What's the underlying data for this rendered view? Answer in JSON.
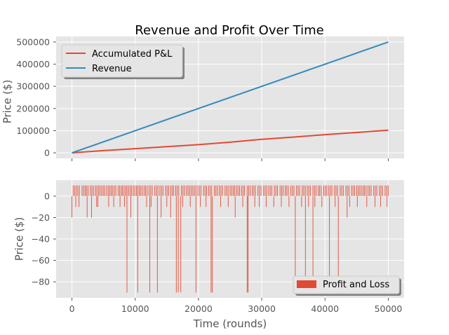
{
  "chart_data": [
    {
      "type": "line",
      "title": "Revenue and Profit Over Time",
      "xlabel": "",
      "ylabel": "Price ($)",
      "xlim": [
        -2500,
        52500
      ],
      "ylim": [
        -25000,
        525000
      ],
      "x_ticks": [
        0,
        10000,
        20000,
        30000,
        40000,
        50000
      ],
      "y_ticks": [
        0,
        100000,
        200000,
        300000,
        400000,
        500000
      ],
      "y_tick_labels": [
        "0",
        "100000",
        "200000",
        "300000",
        "400000",
        "500000"
      ],
      "grid": true,
      "legend_position": "upper-left",
      "series": [
        {
          "name": "Accumulated P&L",
          "color": "#E24A33",
          "x": [
            0,
            5000,
            10000,
            15000,
            20000,
            25000,
            30000,
            35000,
            40000,
            45000,
            50000
          ],
          "y": [
            0,
            10000,
            19000,
            28000,
            37000,
            48000,
            61000,
            71000,
            82000,
            92000,
            102000
          ]
        },
        {
          "name": "Revenue",
          "color": "#348ABD",
          "x": [
            0,
            50000
          ],
          "y": [
            0,
            500000
          ]
        }
      ]
    },
    {
      "type": "bar",
      "title": "",
      "xlabel": "Time (rounds)",
      "ylabel": "Price ($)",
      "xlim": [
        -2500,
        52500
      ],
      "ylim": [
        -95,
        15
      ],
      "x_ticks": [
        0,
        10000,
        20000,
        30000,
        40000,
        50000
      ],
      "x_tick_labels": [
        "0",
        "10000",
        "20000",
        "30000",
        "40000",
        "50000"
      ],
      "y_ticks": [
        -80,
        -60,
        -40,
        -20,
        0
      ],
      "y_tick_labels": [
        "−80",
        "−60",
        "−40",
        "−20",
        "0"
      ],
      "grid": true,
      "legend_position": "lower-right",
      "series": [
        {
          "name": "Profit and Loss",
          "color": "#E24A33",
          "positive_value": 10,
          "positive_runs": [
            [
              200,
              1400
            ],
            [
              1600,
              2100
            ],
            [
              2300,
              2600
            ],
            [
              2900,
              3500
            ],
            [
              3700,
              4500
            ],
            [
              4700,
              5300
            ],
            [
              5500,
              6000
            ],
            [
              6200,
              7100
            ],
            [
              7300,
              7800
            ],
            [
              8000,
              8500
            ],
            [
              8700,
              9500
            ],
            [
              9700,
              10200
            ],
            [
              10400,
              11200
            ],
            [
              11400,
              12000
            ],
            [
              12200,
              12900
            ],
            [
              13100,
              13700
            ],
            [
              13900,
              14600
            ],
            [
              14800,
              15400
            ],
            [
              15600,
              16200
            ],
            [
              16400,
              17100
            ],
            [
              17300,
              17900
            ],
            [
              18100,
              18900
            ],
            [
              19100,
              19700
            ],
            [
              19900,
              20600
            ],
            [
              20800,
              21400
            ],
            [
              21600,
              22300
            ],
            [
              22500,
              23100
            ],
            [
              23300,
              24000
            ],
            [
              24200,
              24800
            ],
            [
              25000,
              25800
            ],
            [
              26000,
              26600
            ],
            [
              26800,
              27500
            ],
            [
              27700,
              28300
            ],
            [
              28500,
              29200
            ],
            [
              29400,
              30100
            ],
            [
              30300,
              30900
            ],
            [
              31100,
              31800
            ],
            [
              32000,
              32700
            ],
            [
              32900,
              33500
            ],
            [
              33700,
              34400
            ],
            [
              34600,
              35300
            ],
            [
              35500,
              36200
            ],
            [
              36400,
              37000
            ],
            [
              37200,
              37900
            ],
            [
              38100,
              38700
            ],
            [
              38900,
              39600
            ],
            [
              39800,
              40400
            ],
            [
              40600,
              41300
            ],
            [
              41500,
              42200
            ],
            [
              42400,
              43100
            ],
            [
              43300,
              44000
            ],
            [
              44200,
              44800
            ],
            [
              45000,
              45800
            ],
            [
              46000,
              46600
            ],
            [
              46800,
              47500
            ],
            [
              47700,
              48400
            ],
            [
              48600,
              49300
            ],
            [
              49500,
              50000
            ]
          ],
          "negative_x": [
            0,
            600,
            1100,
            2400,
            3100,
            3900,
            4100,
            5800,
            6600,
            7600,
            8300,
            8700,
            9300,
            10400,
            11800,
            12300,
            12500,
            13500,
            14100,
            15000,
            15600,
            16500,
            16800,
            17200,
            17500,
            18700,
            19600,
            20300,
            21200,
            22000,
            22200,
            23500,
            24700,
            25800,
            27000,
            27700,
            27850,
            28900,
            29600,
            30700,
            31900,
            33100,
            34300,
            35300,
            36300,
            36900,
            37400,
            38100,
            38400,
            39500,
            40700,
            41600,
            42100,
            43500,
            43900,
            45100,
            46600,
            47900,
            48800,
            49800
          ],
          "negative_y": [
            -20,
            -10,
            -10,
            -20,
            -20,
            -10,
            -10,
            -10,
            -10,
            -10,
            -10,
            -90,
            -20,
            -90,
            -10,
            -90,
            -10,
            -90,
            -20,
            -10,
            -20,
            -90,
            -90,
            -90,
            -10,
            -10,
            -90,
            -10,
            -10,
            -90,
            -90,
            -10,
            -10,
            -20,
            -10,
            -90,
            -90,
            -10,
            -10,
            -10,
            -10,
            -10,
            -10,
            -90,
            -10,
            -90,
            -10,
            -90,
            -10,
            -10,
            -90,
            -10,
            -90,
            -20,
            -10,
            -10,
            -10,
            -10,
            -10,
            -10
          ]
        }
      ]
    }
  ]
}
